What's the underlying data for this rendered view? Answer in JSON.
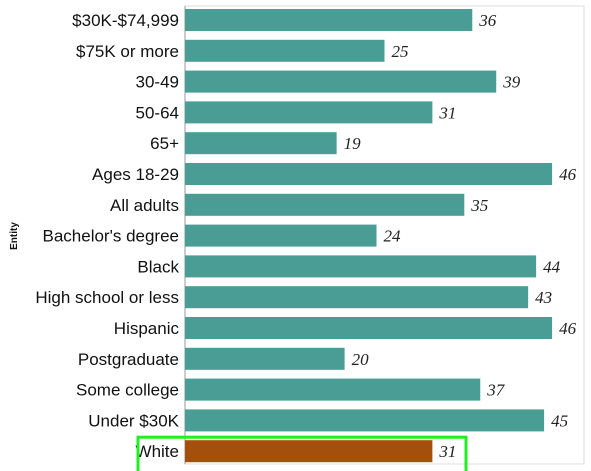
{
  "chart_data": {
    "type": "bar",
    "orientation": "horizontal",
    "ylabel": "Entity",
    "xlim": [
      0,
      50
    ],
    "grid": false,
    "legend": "none",
    "categories": [
      "$30K-$74,999",
      "$75K or more",
      "30-49",
      "50-64",
      "65+",
      "Ages 18-29",
      "All adults",
      "Bachelor's degree",
      "Black",
      "High school or less",
      "Hispanic",
      "Postgraduate",
      "Some college",
      "Under $30K",
      "White"
    ],
    "values": [
      36,
      25,
      39,
      31,
      19,
      46,
      35,
      24,
      44,
      43,
      46,
      20,
      37,
      45,
      31
    ],
    "highlighted_category": "White",
    "colors": {
      "bar": "#4a9d94",
      "highlight_bar": "#a44f0c",
      "highlight_box": "#22ee22",
      "frame": "#dddddd"
    }
  }
}
